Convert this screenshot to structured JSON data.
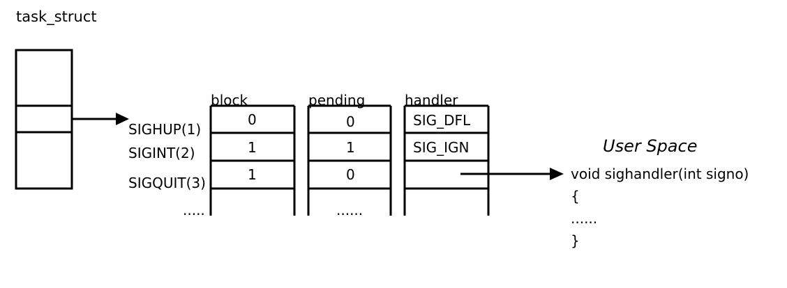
{
  "task_struct_label": "task_struct",
  "columns": {
    "block": "block",
    "pending": "pending",
    "handler": "handler"
  },
  "signals": [
    "SIGHUP(1)",
    "SIGINT(2)",
    "SIGQUIT(3)"
  ],
  "block_values": [
    "0",
    "1",
    "1"
  ],
  "pending_values": [
    "0",
    "1",
    "0"
  ],
  "handler_values": [
    "SIG_DFL",
    "SIG_IGN",
    ""
  ],
  "ellipsis": {
    "signals": ".....",
    "pending": "......",
    "code": "......"
  },
  "user_space": {
    "title": "User Space",
    "code_lines": [
      "void sighandler(int signo)",
      "{",
      "......",
      "}"
    ]
  }
}
